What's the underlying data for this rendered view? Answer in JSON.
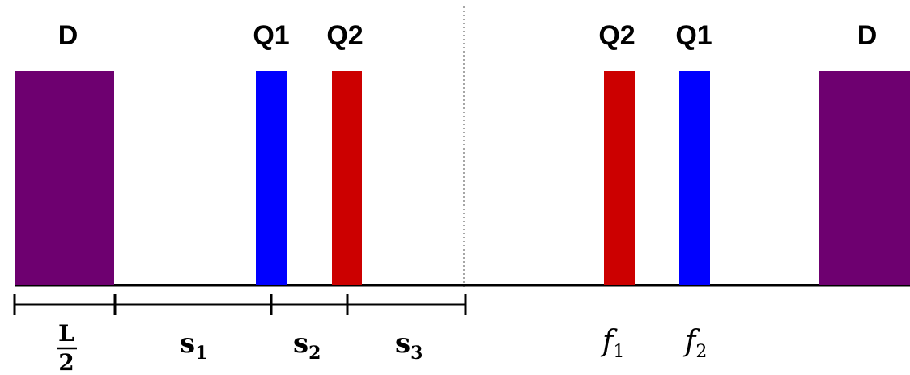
{
  "colors": {
    "dipole": "#6e0070",
    "q1": "#0000ff",
    "q2": "#cc0000",
    "line": "#000000",
    "symmetry_line": "#888888"
  },
  "elements": {
    "dipole_left_label": "D",
    "q1_left_label": "Q1",
    "q2_left_label": "Q2",
    "q2_right_label": "Q2",
    "q1_right_label": "Q1",
    "dipole_right_label": "D"
  },
  "dimensions": {
    "half_length": {
      "numerator": "L",
      "denominator": "2"
    },
    "s1": {
      "base": "s",
      "sub": "1"
    },
    "s2": {
      "base": "s",
      "sub": "2"
    },
    "s3": {
      "base": "s",
      "sub": "3"
    }
  },
  "focal": {
    "f1": {
      "base": "f",
      "sub": "1"
    },
    "f2": {
      "base": "f",
      "sub": "2"
    }
  }
}
